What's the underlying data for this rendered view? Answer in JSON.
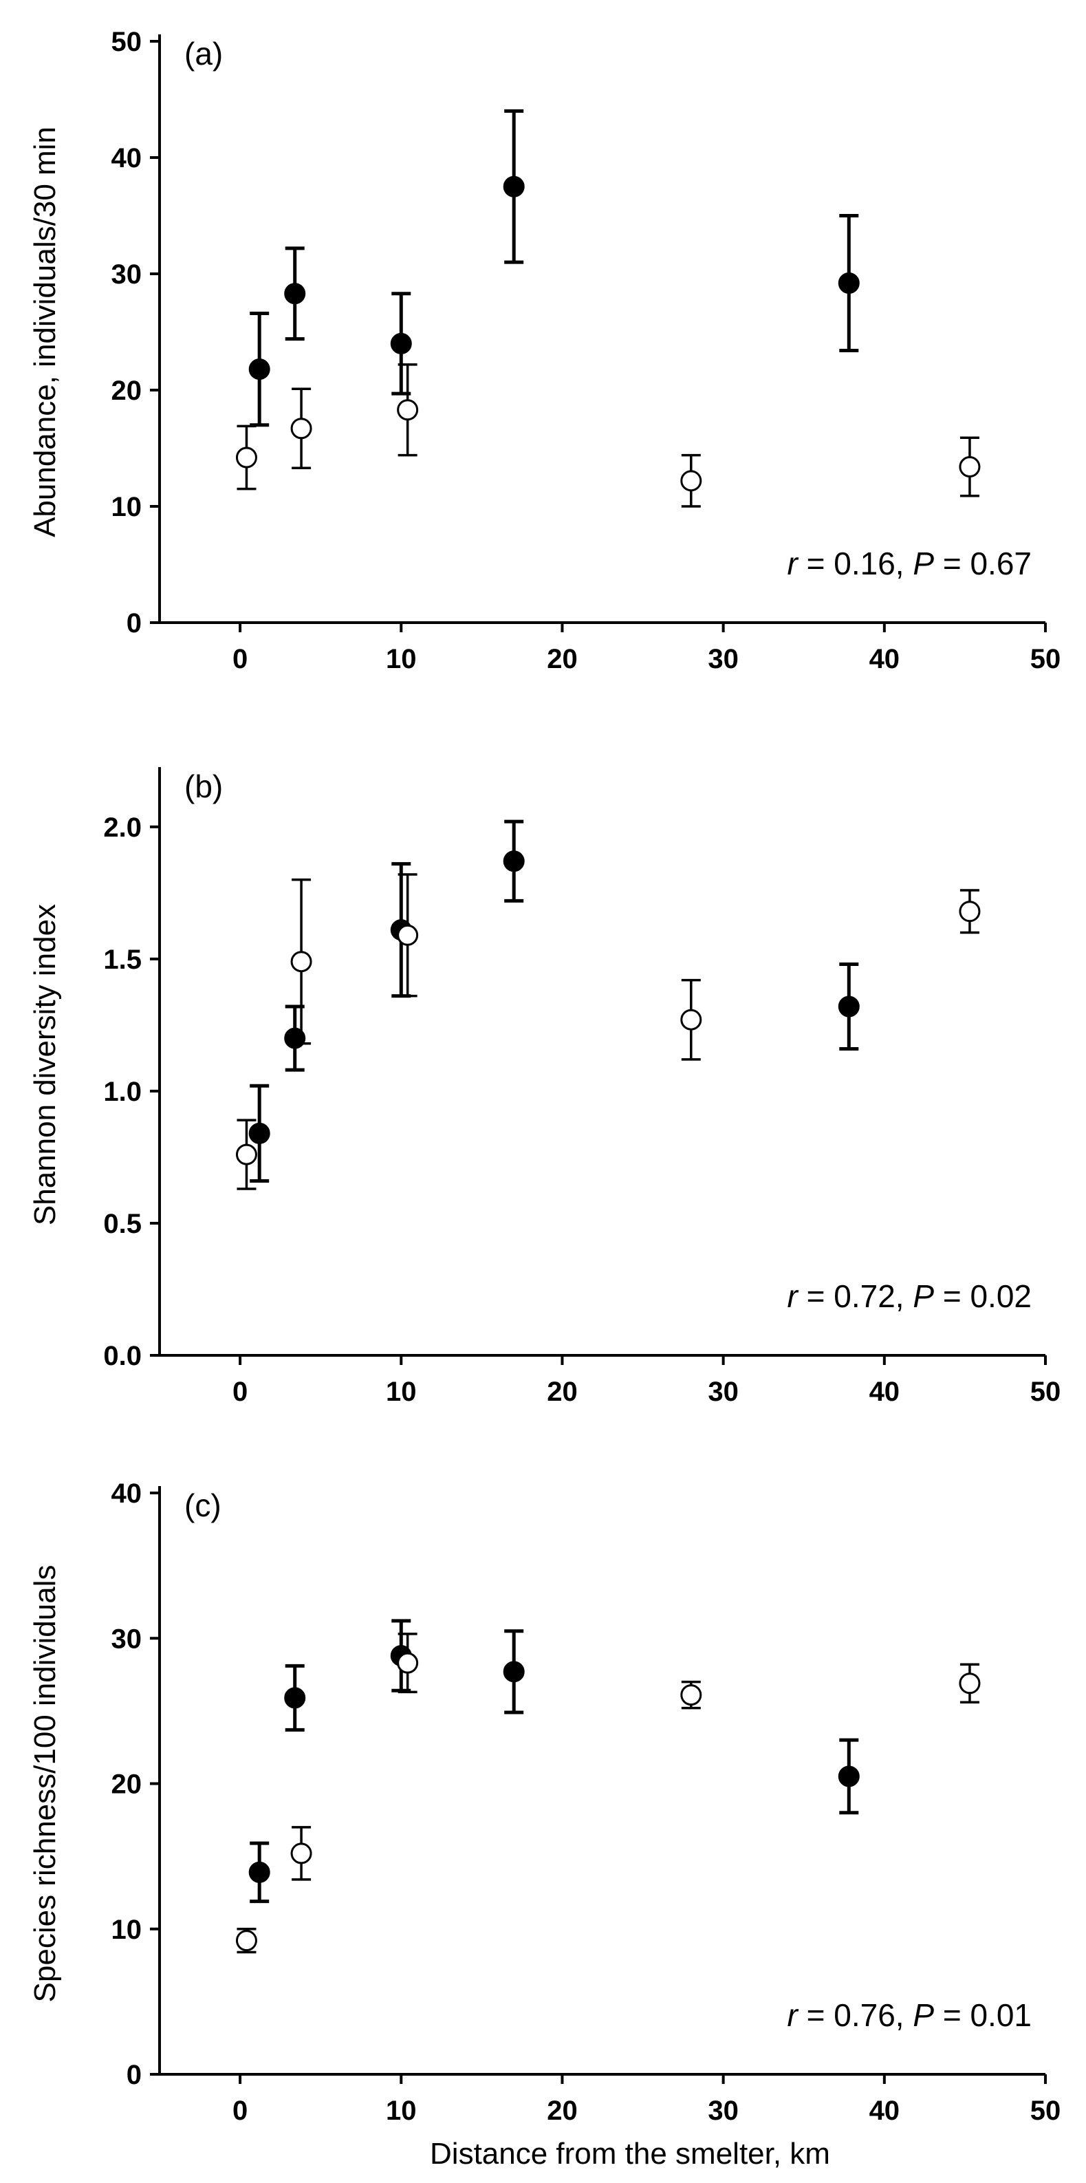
{
  "chart_data": [
    {
      "type": "scatter",
      "panel_label": "(a)",
      "ylabel": "Abundance, individuals/30 min",
      "xlabel": "",
      "xlim": [
        -5,
        50
      ],
      "ylim": [
        0,
        50
      ],
      "xticks": [
        0,
        10,
        20,
        30,
        40,
        50
      ],
      "yticks": [
        0,
        10,
        20,
        30,
        40,
        50
      ],
      "stat": {
        "r": "r",
        "r_text": " = 0.16, ",
        "p": "P",
        "p_text": " = 0.67"
      },
      "series": [
        {
          "marker": "filled",
          "points": [
            {
              "x": 1.2,
              "y": 21.8,
              "err": 4.8
            },
            {
              "x": 3.4,
              "y": 28.3,
              "err": 3.9
            },
            {
              "x": 10.0,
              "y": 24.0,
              "err": 4.3
            },
            {
              "x": 17.0,
              "y": 37.5,
              "err": 6.5
            },
            {
              "x": 37.8,
              "y": 29.2,
              "err": 5.8
            }
          ]
        },
        {
          "marker": "open",
          "points": [
            {
              "x": 0.4,
              "y": 14.2,
              "err": 2.7
            },
            {
              "x": 3.8,
              "y": 16.7,
              "err": 3.4
            },
            {
              "x": 10.4,
              "y": 18.3,
              "err": 3.9
            },
            {
              "x": 28.0,
              "y": 12.2,
              "err": 2.2
            },
            {
              "x": 45.3,
              "y": 13.4,
              "err": 2.5
            }
          ]
        }
      ]
    },
    {
      "type": "scatter",
      "panel_label": "(b)",
      "ylabel": "Shannon diversity index",
      "xlabel": "",
      "xlim": [
        -5,
        50
      ],
      "ylim": [
        0,
        2.2
      ],
      "xticks": [
        0,
        10,
        20,
        30,
        40,
        50
      ],
      "yticks": [
        "0.0",
        "0.5",
        "1.0",
        "1.5",
        "2.0"
      ],
      "stat": {
        "r": "r",
        "r_text": " = 0.72, ",
        "p": "P",
        "p_text": " = 0.02"
      },
      "series": [
        {
          "marker": "filled",
          "points": [
            {
              "x": 1.2,
              "y": 0.84,
              "err": 0.18
            },
            {
              "x": 3.4,
              "y": 1.2,
              "err": 0.12
            },
            {
              "x": 10.0,
              "y": 1.61,
              "err": 0.25
            },
            {
              "x": 17.0,
              "y": 1.87,
              "err": 0.15
            },
            {
              "x": 37.8,
              "y": 1.32,
              "err": 0.16
            }
          ]
        },
        {
          "marker": "open",
          "points": [
            {
              "x": 0.4,
              "y": 0.76,
              "err": 0.13
            },
            {
              "x": 3.8,
              "y": 1.49,
              "err": 0.31
            },
            {
              "x": 10.4,
              "y": 1.59,
              "err": 0.23
            },
            {
              "x": 28.0,
              "y": 1.27,
              "err": 0.15
            },
            {
              "x": 45.3,
              "y": 1.68,
              "err": 0.08
            }
          ]
        }
      ]
    },
    {
      "type": "scatter",
      "panel_label": "(c)",
      "ylabel": "Species richness/100 individuals",
      "xlabel": "Distance from the smelter, km",
      "xlim": [
        -5,
        50
      ],
      "ylim": [
        0,
        40
      ],
      "xticks": [
        0,
        10,
        20,
        30,
        40,
        50
      ],
      "yticks": [
        0,
        10,
        20,
        30,
        40
      ],
      "stat": {
        "r": "r",
        "r_text": " = 0.76, ",
        "p": "P",
        "p_text": " = 0.01"
      },
      "series": [
        {
          "marker": "filled",
          "points": [
            {
              "x": 1.2,
              "y": 13.9,
              "err": 2.0
            },
            {
              "x": 3.4,
              "y": 25.9,
              "err": 2.2
            },
            {
              "x": 10.0,
              "y": 28.8,
              "err": 2.4
            },
            {
              "x": 17.0,
              "y": 27.7,
              "err": 2.8
            },
            {
              "x": 37.8,
              "y": 20.5,
              "err": 2.5
            }
          ]
        },
        {
          "marker": "open",
          "points": [
            {
              "x": 0.4,
              "y": 9.2,
              "err": 0.8
            },
            {
              "x": 3.8,
              "y": 15.2,
              "err": 1.8
            },
            {
              "x": 10.4,
              "y": 28.3,
              "err": 2.0
            },
            {
              "x": 28.0,
              "y": 26.1,
              "err": 0.9
            },
            {
              "x": 45.3,
              "y": 26.9,
              "err": 1.3
            }
          ]
        }
      ]
    }
  ]
}
